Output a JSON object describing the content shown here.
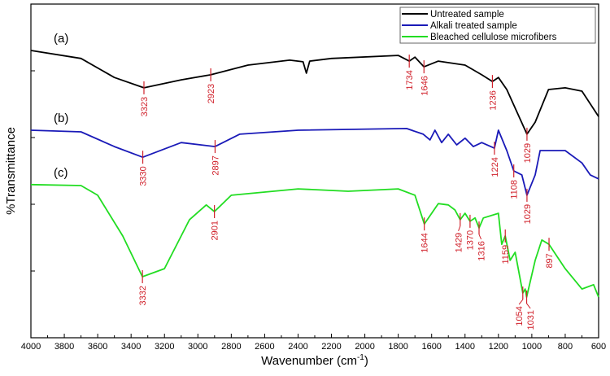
{
  "chart_data": {
    "type": "line",
    "title": "",
    "xlabel": "Wavenumber (cm",
    "xlabel_sup": "-1",
    "xlabel_end": ")",
    "ylabel": "%Transmittance",
    "xlim": [
      4000,
      600
    ],
    "x_reversed": true,
    "ylim": [
      0,
      100
    ],
    "y_tick_labels_shown": false,
    "xticks": [
      4000,
      3800,
      3600,
      3400,
      3200,
      3000,
      2800,
      2600,
      2400,
      2200,
      2000,
      1800,
      1600,
      1400,
      1200,
      1000,
      800,
      600
    ],
    "grid": false,
    "legend": "top-right",
    "annotation_color": "#d0202a",
    "series": [
      {
        "name": "Untreated sample",
        "tag": "(a)",
        "color": "#000000",
        "points": [
          [
            4000,
            86.1
          ],
          [
            3700,
            83.7
          ],
          [
            3500,
            78
          ],
          [
            3323,
            74.9
          ],
          [
            3100,
            77.3
          ],
          [
            2923,
            78.8
          ],
          [
            2700,
            81.7
          ],
          [
            2450,
            83.2
          ],
          [
            2370,
            82.7
          ],
          [
            2350,
            79.3
          ],
          [
            2330,
            82.9
          ],
          [
            2200,
            83.7
          ],
          [
            1800,
            84.6
          ],
          [
            1734,
            82.9
          ],
          [
            1700,
            84.1
          ],
          [
            1646,
            81.2
          ],
          [
            1560,
            82.9
          ],
          [
            1400,
            81.7
          ],
          [
            1300,
            78.8
          ],
          [
            1236,
            76.8
          ],
          [
            1200,
            78
          ],
          [
            1150,
            74.4
          ],
          [
            1029,
            61
          ],
          [
            980,
            64.6
          ],
          [
            900,
            74.4
          ],
          [
            800,
            74.9
          ],
          [
            700,
            73.9
          ],
          [
            600,
            66.3
          ]
        ],
        "peaks": [
          3323,
          2923,
          1734,
          1646,
          1236,
          1029
        ]
      },
      {
        "name": "Alkali treated sample",
        "tag": "(b)",
        "color": "#1a1ab8",
        "points": [
          [
            4000,
            62.2
          ],
          [
            3700,
            61.7
          ],
          [
            3500,
            57.3
          ],
          [
            3330,
            54.1
          ],
          [
            3100,
            58.5
          ],
          [
            2897,
            57.3
          ],
          [
            2750,
            61
          ],
          [
            2400,
            62.2
          ],
          [
            1750,
            62.7
          ],
          [
            1650,
            61
          ],
          [
            1610,
            59.3
          ],
          [
            1580,
            62.2
          ],
          [
            1540,
            58.5
          ],
          [
            1500,
            61
          ],
          [
            1450,
            57.8
          ],
          [
            1400,
            59.8
          ],
          [
            1350,
            57.3
          ],
          [
            1300,
            58.5
          ],
          [
            1224,
            56.8
          ],
          [
            1200,
            62.2
          ],
          [
            1150,
            56.1
          ],
          [
            1108,
            50
          ],
          [
            1060,
            48.8
          ],
          [
            1029,
            42.7
          ],
          [
            980,
            48.8
          ],
          [
            950,
            56.1
          ],
          [
            800,
            56.1
          ],
          [
            700,
            52.4
          ],
          [
            650,
            48.8
          ],
          [
            600,
            47.6
          ]
        ],
        "peaks": [
          3330,
          2897,
          1224,
          1108,
          1029
        ]
      },
      {
        "name": "Bleached cellulose microfibers",
        "tag": "(c)",
        "color": "#22dd22",
        "points": [
          [
            4000,
            45.9
          ],
          [
            3700,
            45.6
          ],
          [
            3600,
            42.7
          ],
          [
            3450,
            30.5
          ],
          [
            3332,
            18.3
          ],
          [
            3200,
            20.7
          ],
          [
            3050,
            35.4
          ],
          [
            2950,
            39.8
          ],
          [
            2901,
            37.8
          ],
          [
            2800,
            42.7
          ],
          [
            2400,
            44.6
          ],
          [
            2100,
            43.9
          ],
          [
            1800,
            44.6
          ],
          [
            1700,
            42.7
          ],
          [
            1644,
            34.1
          ],
          [
            1560,
            40.2
          ],
          [
            1500,
            39.8
          ],
          [
            1460,
            38.3
          ],
          [
            1429,
            35.4
          ],
          [
            1400,
            37.3
          ],
          [
            1370,
            34.9
          ],
          [
            1340,
            35.9
          ],
          [
            1316,
            32.9
          ],
          [
            1290,
            35.9
          ],
          [
            1200,
            37.3
          ],
          [
            1180,
            28
          ],
          [
            1159,
            30.5
          ],
          [
            1130,
            23.2
          ],
          [
            1100,
            25.6
          ],
          [
            1054,
            13.4
          ],
          [
            1040,
            14.6
          ],
          [
            1031,
            12.2
          ],
          [
            980,
            23.2
          ],
          [
            940,
            29.3
          ],
          [
            897,
            28
          ],
          [
            800,
            20.7
          ],
          [
            700,
            14.6
          ],
          [
            630,
            15.9
          ],
          [
            600,
            12.2
          ]
        ],
        "peaks": [
          3332,
          2901,
          1644,
          1429,
          1370,
          1316,
          1159,
          1054,
          1031,
          897
        ]
      }
    ]
  }
}
